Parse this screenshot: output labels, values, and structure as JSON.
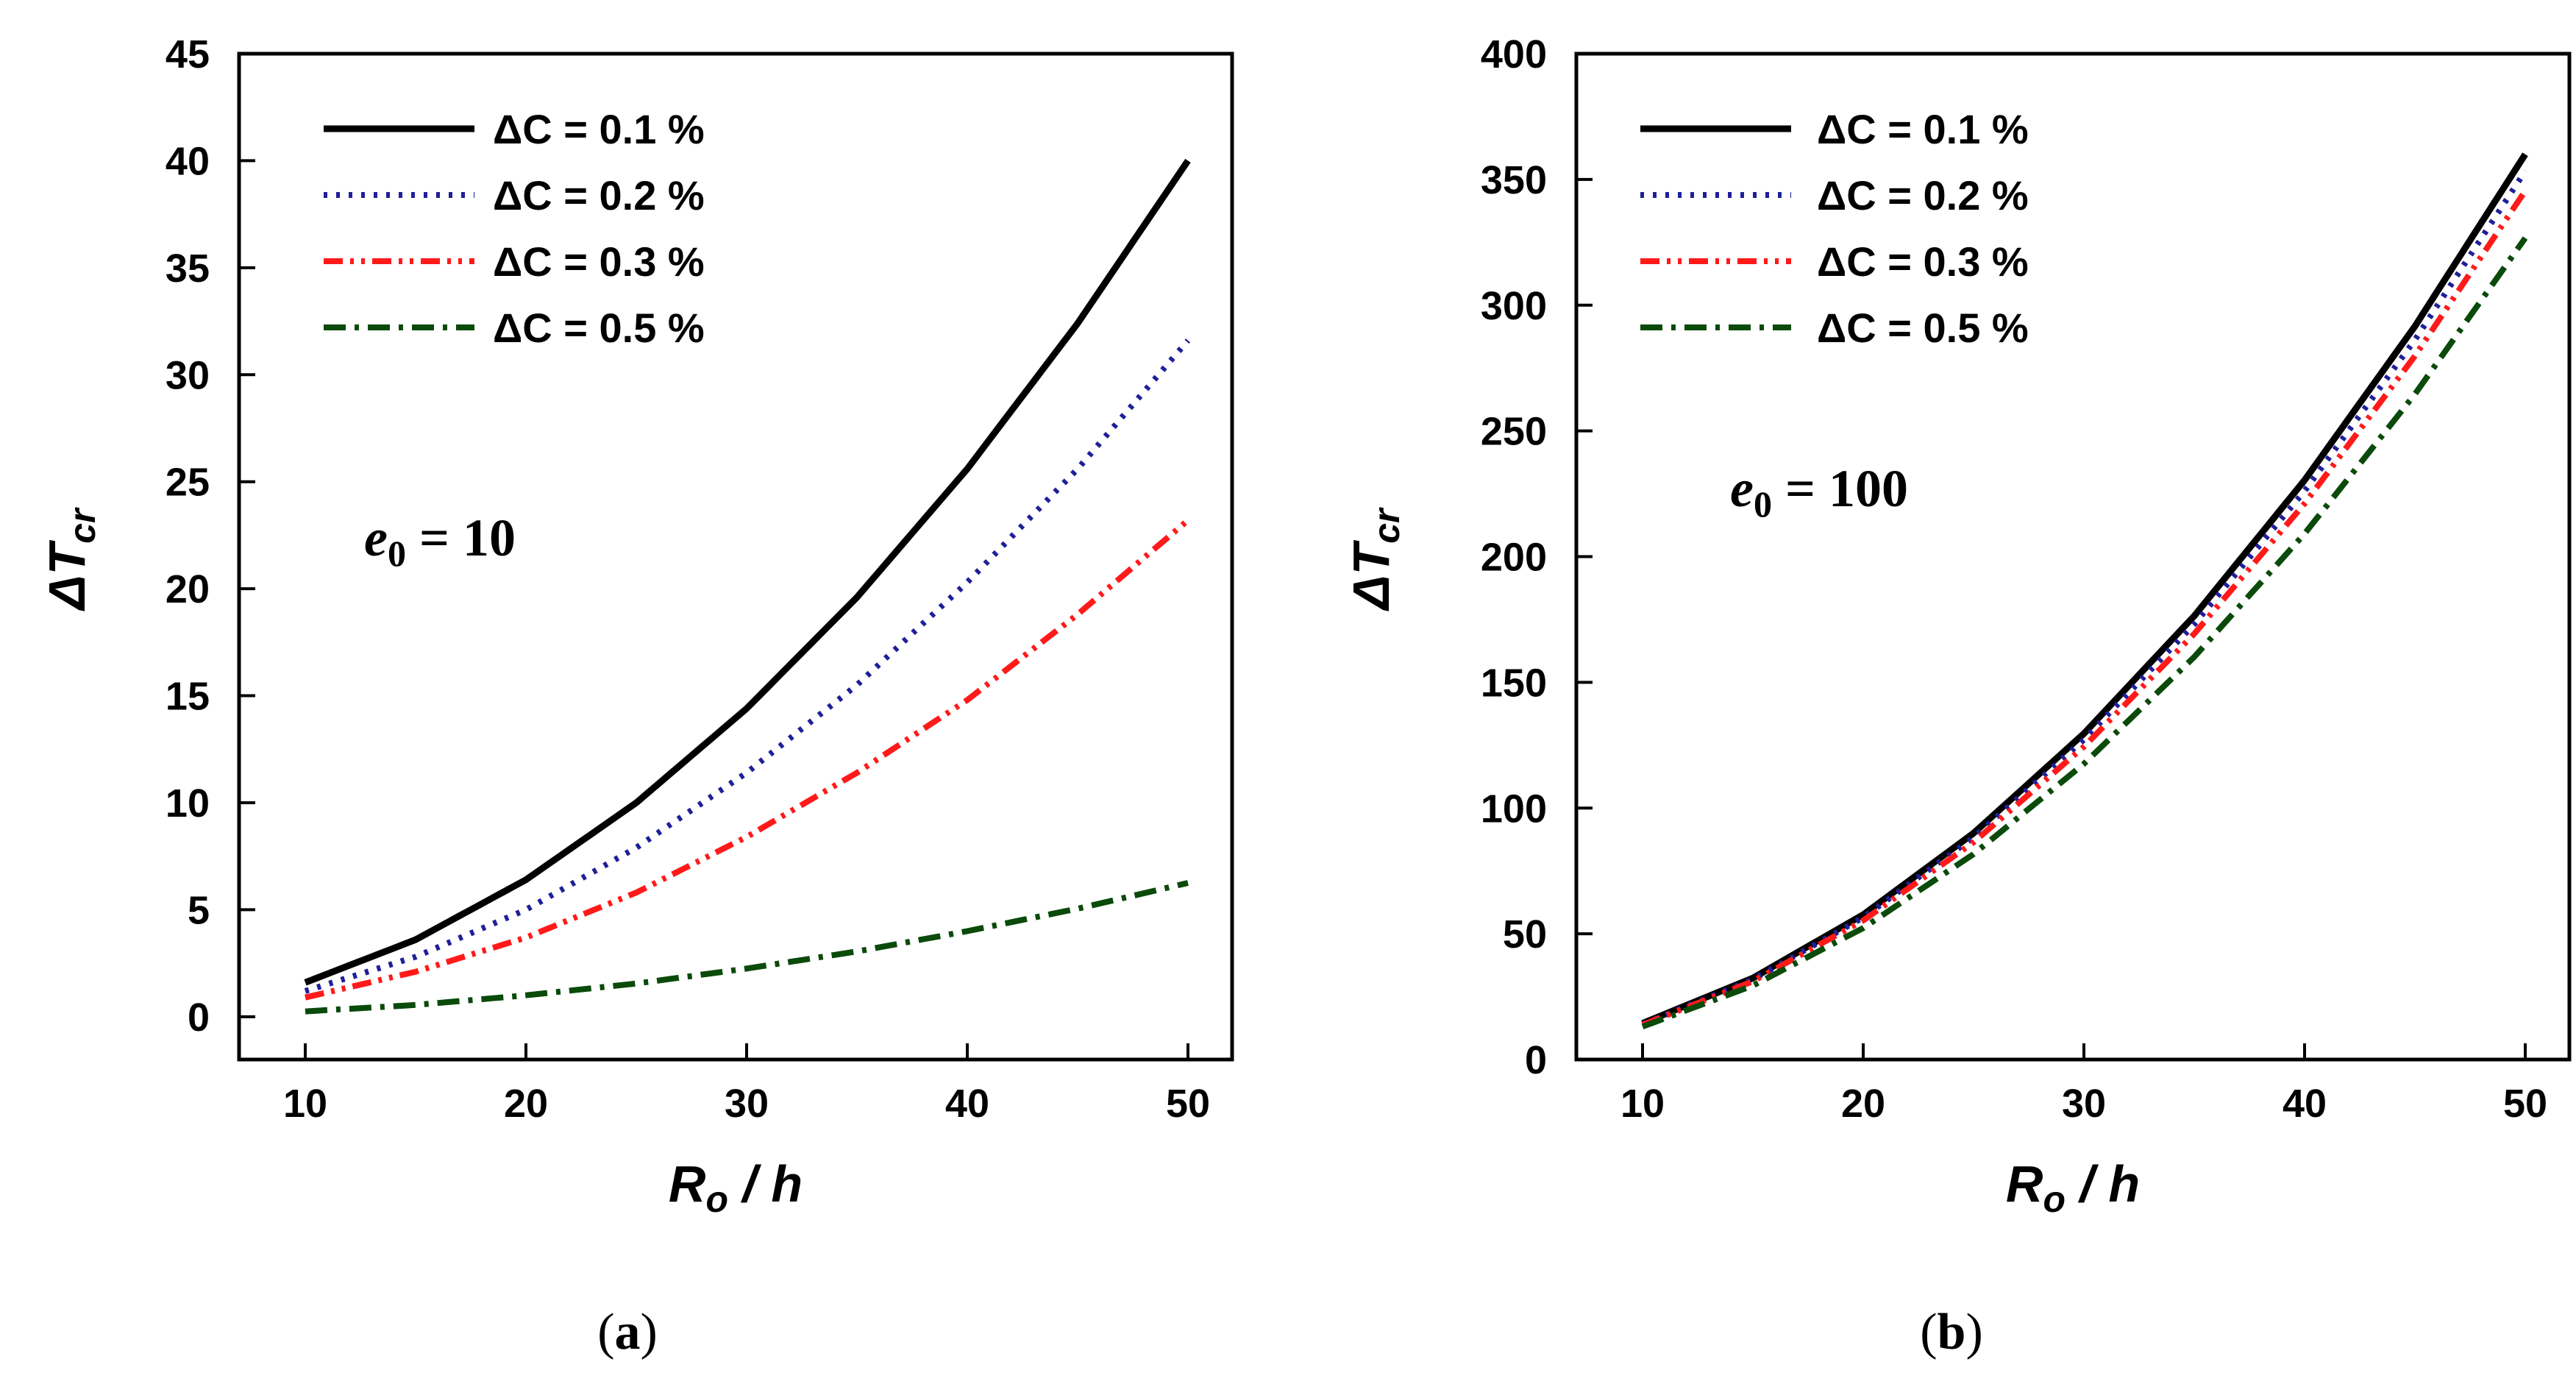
{
  "chart_data": [
    {
      "type": "line",
      "panel": "(a)",
      "panel_letter": "a",
      "xlabel_main": "R",
      "xlabel_sub": "o",
      "xlabel_rest": " / h",
      "ylabel_main": "ΔT",
      "ylabel_sub": "cr",
      "xlim": [
        7,
        52
      ],
      "ylim": [
        -2,
        45
      ],
      "xticks": [
        10,
        20,
        30,
        40,
        50
      ],
      "yticks": [
        0,
        5,
        10,
        15,
        20,
        25,
        30,
        35,
        40,
        45
      ],
      "annotation": {
        "main": "e",
        "sub": "0",
        "rest": " = 10"
      },
      "legend_position": "top-left",
      "series": [
        {
          "name": "ΔC = 0.1 %",
          "color": "#000000",
          "style": "solid",
          "x": [
            10,
            15,
            20,
            25,
            30,
            35,
            40,
            45,
            50
          ],
          "y": [
            1.6,
            3.6,
            6.4,
            10.0,
            14.4,
            19.6,
            25.6,
            32.4,
            40.0
          ]
        },
        {
          "name": "ΔC = 0.2 %",
          "color": "#1f1f9a",
          "style": "dotted",
          "x": [
            10,
            15,
            20,
            25,
            30,
            35,
            40,
            45,
            50
          ],
          "y": [
            1.2,
            2.8,
            5.0,
            7.9,
            11.4,
            15.5,
            20.3,
            25.6,
            31.6
          ]
        },
        {
          "name": "ΔC = 0.3 %",
          "color": "#ff1a1a",
          "style": "dash-dot-dot",
          "x": [
            10,
            15,
            20,
            25,
            30,
            35,
            40,
            45,
            50
          ],
          "y": [
            0.9,
            2.1,
            3.7,
            5.8,
            8.4,
            11.4,
            14.8,
            18.8,
            23.2
          ]
        },
        {
          "name": "ΔC = 0.5 %",
          "color": "#0a4a0a",
          "style": "dash-dot",
          "x": [
            10,
            15,
            20,
            25,
            30,
            35,
            40,
            45,
            50
          ],
          "y": [
            0.25,
            0.55,
            1.0,
            1.55,
            2.25,
            3.05,
            4.0,
            5.05,
            6.25
          ]
        }
      ]
    },
    {
      "type": "line",
      "panel": "(b)",
      "panel_letter": "b",
      "xlabel_main": "R",
      "xlabel_sub": "o",
      "xlabel_rest": " / h",
      "ylabel_main": "ΔT",
      "ylabel_sub": "cr",
      "xlim": [
        7,
        52
      ],
      "ylim": [
        0,
        400
      ],
      "xticks": [
        10,
        20,
        30,
        40,
        50
      ],
      "yticks": [
        0,
        50,
        100,
        150,
        200,
        250,
        300,
        350,
        400
      ],
      "annotation": {
        "main": "e",
        "sub": "0",
        "rest": " = 100"
      },
      "legend_position": "top-left",
      "series": [
        {
          "name": "ΔC = 0.1 %",
          "color": "#000000",
          "style": "solid",
          "x": [
            10,
            15,
            20,
            25,
            30,
            35,
            40,
            45,
            50
          ],
          "y": [
            14.4,
            32.4,
            57.6,
            90.0,
            129.6,
            176.4,
            230.4,
            291.6,
            360.0
          ]
        },
        {
          "name": "ΔC = 0.2 %",
          "color": "#1f1f9a",
          "style": "dotted",
          "x": [
            10,
            15,
            20,
            25,
            30,
            35,
            40,
            45,
            50
          ],
          "y": [
            14.1,
            31.8,
            56.5,
            88.3,
            127.2,
            173.1,
            226.1,
            286.2,
            353.3
          ]
        },
        {
          "name": "ΔC = 0.3 %",
          "color": "#ff1a1a",
          "style": "dash-dot-dot",
          "x": [
            10,
            15,
            20,
            25,
            30,
            35,
            40,
            45,
            50
          ],
          "y": [
            13.8,
            31.1,
            55.3,
            86.4,
            124.4,
            169.3,
            221.1,
            279.8,
            345.5
          ]
        },
        {
          "name": "ΔC = 0.5 %",
          "color": "#0a4a0a",
          "style": "dash-dot",
          "x": [
            10,
            15,
            20,
            25,
            30,
            35,
            40,
            45,
            50
          ],
          "y": [
            13.1,
            29.4,
            52.3,
            81.7,
            117.6,
            160.1,
            209.1,
            264.6,
            326.7
          ]
        }
      ]
    }
  ]
}
